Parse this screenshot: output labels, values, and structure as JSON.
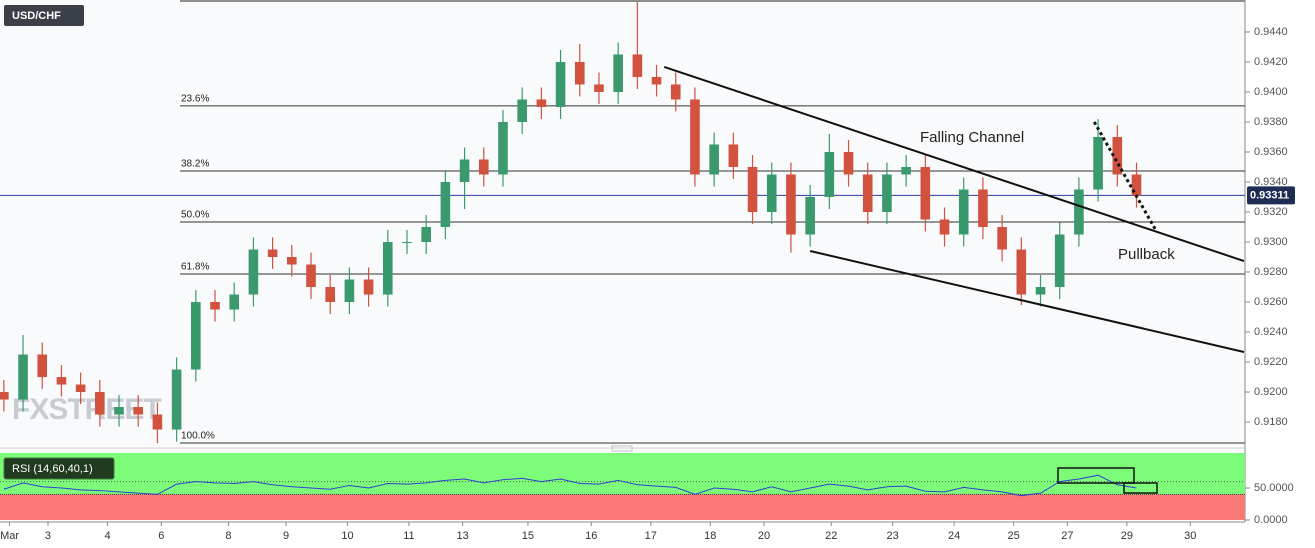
{
  "watermark": "FXSTREET",
  "chart_data": [
    {
      "type": "candlestick",
      "title": "USD/CHF",
      "xlim": [
        -0.2,
        64.6
      ],
      "ylim": [
        0.91647,
        0.94613
      ],
      "xticks": [
        {
          "value": 0.3,
          "label": "Mar"
        },
        {
          "value": 2.3,
          "label": "3"
        },
        {
          "value": 5.4,
          "label": "4"
        },
        {
          "value": 8.2,
          "label": "6"
        },
        {
          "value": 11.7,
          "label": "8"
        },
        {
          "value": 14.7,
          "label": "9"
        },
        {
          "value": 17.9,
          "label": "10"
        },
        {
          "value": 21.1,
          "label": "11"
        },
        {
          "value": 23.9,
          "label": "13"
        },
        {
          "value": 27.3,
          "label": "15"
        },
        {
          "value": 30.6,
          "label": "16"
        },
        {
          "value": 33.7,
          "label": "17"
        },
        {
          "value": 36.8,
          "label": "18"
        },
        {
          "value": 39.6,
          "label": "20"
        },
        {
          "value": 43.1,
          "label": "22"
        },
        {
          "value": 46.3,
          "label": "23"
        },
        {
          "value": 49.5,
          "label": "24"
        },
        {
          "value": 52.6,
          "label": "25"
        },
        {
          "value": 55.4,
          "label": "27"
        },
        {
          "value": 58.5,
          "label": "29"
        },
        {
          "value": 61.8,
          "label": "30"
        }
      ],
      "yticks": [
        {
          "value": 0.918,
          "label": "0.9180"
        },
        {
          "value": 0.92,
          "label": "0.9200"
        },
        {
          "value": 0.922,
          "label": "0.9220"
        },
        {
          "value": 0.924,
          "label": "0.9240"
        },
        {
          "value": 0.926,
          "label": "0.9260"
        },
        {
          "value": 0.928,
          "label": "0.9280"
        },
        {
          "value": 0.93,
          "label": "0.9300"
        },
        {
          "value": 0.932,
          "label": "0.9320"
        },
        {
          "value": 0.934,
          "label": "0.9340"
        },
        {
          "value": 0.936,
          "label": "0.9360"
        },
        {
          "value": 0.938,
          "label": "0.9380"
        },
        {
          "value": 0.94,
          "label": "0.9400"
        },
        {
          "value": 0.942,
          "label": "0.9420"
        },
        {
          "value": 0.944,
          "label": "0.9440"
        }
      ],
      "up_color": "#3a9a6e",
      "down_color": "#d0523f",
      "open": [
        0.92,
        0.9195,
        0.9225,
        0.921,
        0.9205,
        0.92,
        0.9185,
        0.919,
        0.9185,
        0.9175,
        0.9215,
        0.926,
        0.9255,
        0.9265,
        0.9295,
        0.929,
        0.9285,
        0.927,
        0.926,
        0.9275,
        0.9265,
        0.93,
        0.93,
        0.931,
        0.934,
        0.9355,
        0.9345,
        0.938,
        0.9395,
        0.939,
        0.942,
        0.9405,
        0.94,
        0.9425,
        0.941,
        0.9405,
        0.9395,
        0.9345,
        0.9365,
        0.935,
        0.932,
        0.9345,
        0.9305,
        0.933,
        0.936,
        0.9345,
        0.932,
        0.9345,
        0.935,
        0.9315,
        0.9305,
        0.9335,
        0.931,
        0.9295,
        0.9265,
        0.927,
        0.9305,
        0.9335,
        0.937,
        0.9345
      ],
      "high": [
        0.9208,
        0.9238,
        0.9233,
        0.9218,
        0.9213,
        0.9208,
        0.9198,
        0.9198,
        0.9193,
        0.9223,
        0.9268,
        0.9268,
        0.9273,
        0.9303,
        0.9303,
        0.9298,
        0.9293,
        0.9278,
        0.9283,
        0.9283,
        0.9308,
        0.9308,
        0.9318,
        0.9348,
        0.9363,
        0.9363,
        0.9388,
        0.9403,
        0.9403,
        0.9428,
        0.9432,
        0.9413,
        0.9433,
        0.946,
        0.9418,
        0.9413,
        0.9403,
        0.9373,
        0.9373,
        0.9358,
        0.9353,
        0.9353,
        0.9338,
        0.9372,
        0.9368,
        0.9353,
        0.9353,
        0.9358,
        0.9358,
        0.9323,
        0.9343,
        0.9343,
        0.9318,
        0.9303,
        0.9278,
        0.9313,
        0.9343,
        0.9382,
        0.9378,
        0.9353
      ],
      "low": [
        0.9187,
        0.9187,
        0.9202,
        0.9197,
        0.9192,
        0.9177,
        0.9177,
        0.9177,
        0.9166,
        0.9167,
        0.9207,
        0.9247,
        0.9247,
        0.9257,
        0.9282,
        0.9277,
        0.9262,
        0.9252,
        0.9252,
        0.9257,
        0.9257,
        0.9292,
        0.9292,
        0.9302,
        0.9322,
        0.9337,
        0.9337,
        0.9372,
        0.9382,
        0.9382,
        0.9397,
        0.9392,
        0.9392,
        0.9402,
        0.9397,
        0.9387,
        0.9337,
        0.9337,
        0.9342,
        0.9312,
        0.9312,
        0.9293,
        0.9297,
        0.9322,
        0.9337,
        0.9312,
        0.9312,
        0.9337,
        0.9307,
        0.9297,
        0.9297,
        0.9302,
        0.9287,
        0.9258,
        0.9257,
        0.9262,
        0.9297,
        0.9327,
        0.9337,
        0.9323
      ],
      "close": [
        0.9195,
        0.9225,
        0.921,
        0.9205,
        0.92,
        0.9185,
        0.919,
        0.9185,
        0.9175,
        0.9215,
        0.926,
        0.9255,
        0.9265,
        0.9295,
        0.929,
        0.9285,
        0.927,
        0.926,
        0.9275,
        0.9265,
        0.93,
        0.93,
        0.931,
        0.934,
        0.9355,
        0.9345,
        0.938,
        0.9395,
        0.939,
        0.942,
        0.9405,
        0.94,
        0.9425,
        0.941,
        0.9405,
        0.9395,
        0.9345,
        0.9365,
        0.935,
        0.932,
        0.9345,
        0.9305,
        0.933,
        0.936,
        0.9345,
        0.932,
        0.9345,
        0.935,
        0.9315,
        0.9305,
        0.9335,
        0.931,
        0.9295,
        0.9265,
        0.927,
        0.9305,
        0.9335,
        0.937,
        0.9345,
        0.9331
      ],
      "current_price": 0.93311,
      "current_price_color": "#2b3f9e",
      "fib_levels": [
        {
          "name": "23.6%",
          "value": 0.93907
        },
        {
          "name": "38.2%",
          "value": 0.93473
        },
        {
          "name": "50.0%",
          "value": 0.93133
        },
        {
          "name": "61.8%",
          "value": 0.92787
        },
        {
          "name": "100.0%",
          "value": 0.9166
        }
      ],
      "trendlines": [
        {
          "x": [
            34.4,
            64.6
          ],
          "y": [
            0.94167,
            0.92873
          ]
        },
        {
          "x": [
            42.0,
            64.6
          ],
          "y": [
            0.9294,
            0.92267
          ]
        }
      ],
      "pullback_line": {
        "x": [
          56.8,
          60.0
        ],
        "y": [
          0.938,
          0.9308
        ]
      },
      "annotations": [
        "Falling Channel",
        "Pullback"
      ]
    },
    {
      "type": "line",
      "title": "RSI (14,60,40,1)",
      "xlim": [
        -0.2,
        64.6
      ],
      "ylim": [
        0,
        104.7
      ],
      "yticks": [
        {
          "value": 50,
          "label": "50.0000"
        },
        {
          "value": 0,
          "label": "0.0000"
        }
      ],
      "levels": [
        60,
        40
      ],
      "upper_color": "#7dfc7a",
      "lower_color": "#fb7a78",
      "series": [
        {
          "color": "#2f3fd0",
          "values": [
            48,
            58,
            52,
            50,
            47,
            46,
            44,
            42,
            40,
            56,
            60,
            58,
            57,
            60,
            55,
            52,
            50,
            48,
            54,
            50,
            57,
            56,
            58,
            62,
            64,
            58,
            63,
            65,
            60,
            64,
            57,
            56,
            62,
            55,
            53,
            51,
            40,
            50,
            48,
            44,
            52,
            44,
            50,
            56,
            53,
            47,
            52,
            53,
            45,
            44,
            51,
            47,
            44,
            38,
            42,
            60,
            64,
            70,
            55,
            50
          ]
        }
      ]
    }
  ]
}
